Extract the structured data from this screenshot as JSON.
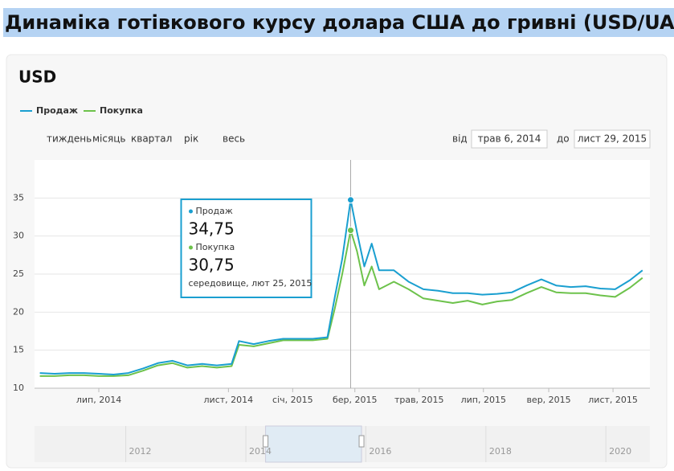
{
  "chart_data": {
    "type": "line",
    "title": "Динаміка готівкового курсу долара США до гривні (USD/UAH)",
    "subtitle": "USD",
    "controls": {
      "range_buttons": [
        "тиждень",
        "місяць",
        "квартал",
        "рік",
        "весь"
      ],
      "from_label": "від",
      "from": "трав 6, 2014",
      "to_label": "до",
      "to": "лист 29, 2015"
    },
    "x": [
      "2014-05-06",
      "2014-05-20",
      "2014-06-03",
      "2014-06-17",
      "2014-07-01",
      "2014-07-15",
      "2014-07-29",
      "2014-08-12",
      "2014-08-26",
      "2014-09-09",
      "2014-09-23",
      "2014-10-07",
      "2014-10-21",
      "2014-11-04",
      "2014-11-11",
      "2014-11-25",
      "2014-12-09",
      "2014-12-23",
      "2015-01-06",
      "2015-01-20",
      "2015-02-03",
      "2015-02-10",
      "2015-02-17",
      "2015-02-25",
      "2015-03-03",
      "2015-03-10",
      "2015-03-17",
      "2015-03-24",
      "2015-04-07",
      "2015-04-21",
      "2015-05-05",
      "2015-05-19",
      "2015-06-02",
      "2015-06-16",
      "2015-06-30",
      "2015-07-14",
      "2015-07-28",
      "2015-08-11",
      "2015-08-25",
      "2015-09-08",
      "2015-09-22",
      "2015-10-06",
      "2015-10-20",
      "2015-11-03",
      "2015-11-17",
      "2015-11-29"
    ],
    "series": [
      {
        "name": "Продаж",
        "color": "#1a9fd0",
        "values": [
          12.0,
          11.9,
          12.0,
          12.0,
          11.9,
          11.8,
          12.0,
          12.6,
          13.3,
          13.6,
          13.0,
          13.2,
          13.0,
          13.2,
          16.2,
          15.8,
          16.2,
          16.5,
          16.5,
          16.5,
          16.7,
          22.0,
          27.0,
          34.75,
          30.5,
          26.0,
          29.0,
          25.5,
          25.5,
          24.0,
          23.0,
          22.8,
          22.5,
          22.5,
          22.3,
          22.4,
          22.6,
          23.5,
          24.3,
          23.5,
          23.3,
          23.4,
          23.1,
          23.0,
          24.2,
          25.5
        ]
      },
      {
        "name": "Покупка",
        "color": "#6dc24b",
        "values": [
          11.6,
          11.6,
          11.7,
          11.7,
          11.6,
          11.6,
          11.7,
          12.3,
          13.0,
          13.3,
          12.7,
          12.9,
          12.7,
          12.9,
          15.7,
          15.5,
          15.9,
          16.3,
          16.3,
          16.3,
          16.5,
          20.5,
          25.0,
          30.75,
          28.0,
          23.5,
          26.0,
          23.0,
          24.0,
          23.0,
          21.8,
          21.5,
          21.2,
          21.5,
          21.0,
          21.4,
          21.6,
          22.5,
          23.3,
          22.6,
          22.5,
          22.5,
          22.2,
          22.0,
          23.2,
          24.5
        ]
      }
    ],
    "xlim": [
      "2014-05-01",
      "2015-12-06"
    ],
    "xticks": [
      {
        "value": "2014-07-01",
        "label": "лип, 2014"
      },
      {
        "value": "2014-11-01",
        "label": "лист, 2014"
      },
      {
        "value": "2015-01-01",
        "label": "січ, 2015"
      },
      {
        "value": "2015-03-01",
        "label": "бер, 2015"
      },
      {
        "value": "2015-05-01",
        "label": "трав, 2015"
      },
      {
        "value": "2015-07-01",
        "label": "лип, 2015"
      },
      {
        "value": "2015-09-01",
        "label": "вер, 2015"
      },
      {
        "value": "2015-11-01",
        "label": "лист, 2015"
      }
    ],
    "ylim": [
      10,
      40
    ],
    "yticks": [
      10,
      15,
      20,
      25,
      30,
      35
    ],
    "grid": true,
    "tooltip": {
      "x": "2015-02-25",
      "x_label": "середовище, лют 25, 2015",
      "items": [
        {
          "name": "Продаж",
          "value": 34.75,
          "label": "34,75"
        },
        {
          "name": "Покупка",
          "value": 30.75,
          "label": "30,75"
        }
      ]
    },
    "navigator": {
      "xlim": [
        "2010-06-25",
        "2020-09-25"
      ],
      "xticks": [
        {
          "value": "2012-01-01",
          "label": "2012"
        },
        {
          "value": "2014-01-01",
          "label": "2014"
        },
        {
          "value": "2016-01-01",
          "label": "2016"
        },
        {
          "value": "2018-01-01",
          "label": "2018"
        },
        {
          "value": "2020-01-01",
          "label": "2020"
        }
      ]
    }
  }
}
